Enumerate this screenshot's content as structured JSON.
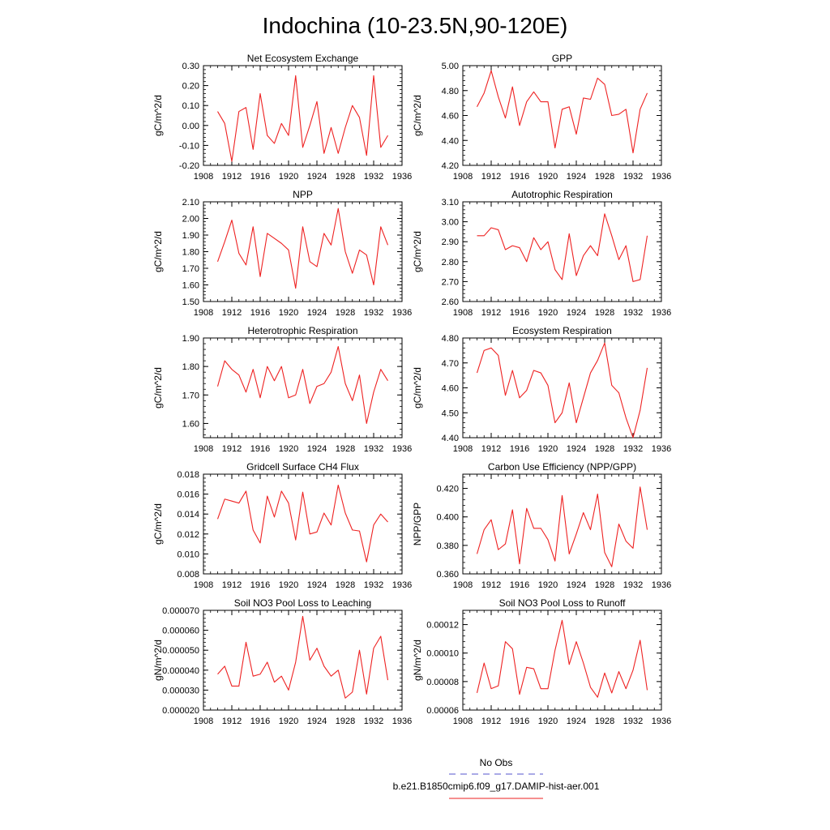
{
  "title": "Indochina (10-23.5N,90-120E)",
  "legend": {
    "items": [
      {
        "label": "No Obs",
        "color": "#5555cc",
        "dash": true
      },
      {
        "label": "b.e21.B1850cmip6.f09_g17.DAMIP-hist-aer.001",
        "color": "#ee2222",
        "dash": false
      }
    ]
  },
  "chart_data": [
    {
      "type": "line",
      "title": "Net Ecosystem Exchange",
      "ylabel": "gC/m^2/d",
      "xlim": [
        1908,
        1936
      ],
      "xticks": [
        1908,
        1912,
        1916,
        1920,
        1924,
        1928,
        1932,
        1936
      ],
      "ylim": [
        -0.2,
        0.3
      ],
      "yticks": [
        -0.2,
        -0.1,
        0.0,
        0.1,
        0.2,
        0.3
      ],
      "ytick_labels": [
        "-0.20",
        "-0.10",
        "0.00",
        "0.10",
        "0.20",
        "0.30"
      ],
      "x": [
        1910,
        1911,
        1912,
        1913,
        1914,
        1915,
        1916,
        1917,
        1918,
        1919,
        1920,
        1921,
        1922,
        1923,
        1924,
        1925,
        1926,
        1927,
        1928,
        1929,
        1930,
        1931,
        1932,
        1933,
        1934
      ],
      "series": [
        {
          "color": "#ee2222",
          "values": [
            0.07,
            0.01,
            -0.18,
            0.07,
            0.09,
            -0.12,
            0.16,
            -0.05,
            -0.09,
            0.01,
            -0.05,
            0.25,
            -0.11,
            0.0,
            0.12,
            -0.14,
            -0.01,
            -0.14,
            -0.01,
            0.1,
            0.04,
            -0.15,
            0.25,
            -0.11,
            -0.05
          ]
        }
      ]
    },
    {
      "type": "line",
      "title": "GPP",
      "ylabel": "gC/m^2/d",
      "xlim": [
        1908,
        1936
      ],
      "xticks": [
        1908,
        1912,
        1916,
        1920,
        1924,
        1928,
        1932,
        1936
      ],
      "ylim": [
        4.2,
        5.0
      ],
      "yticks": [
        4.2,
        4.4,
        4.6,
        4.8,
        5.0
      ],
      "ytick_labels": [
        "4.20",
        "4.40",
        "4.60",
        "4.80",
        "5.00"
      ],
      "x": [
        1910,
        1911,
        1912,
        1913,
        1914,
        1915,
        1916,
        1917,
        1918,
        1919,
        1920,
        1921,
        1922,
        1923,
        1924,
        1925,
        1926,
        1927,
        1928,
        1929,
        1930,
        1931,
        1932,
        1933,
        1934
      ],
      "series": [
        {
          "color": "#ee2222",
          "values": [
            4.67,
            4.78,
            4.96,
            4.75,
            4.58,
            4.83,
            4.52,
            4.71,
            4.79,
            4.71,
            4.71,
            4.34,
            4.65,
            4.67,
            4.45,
            4.74,
            4.73,
            4.9,
            4.85,
            4.6,
            4.61,
            4.65,
            4.3,
            4.65,
            4.78
          ]
        }
      ]
    },
    {
      "type": "line",
      "title": "NPP",
      "ylabel": "gC/m^2/d",
      "xlim": [
        1908,
        1936
      ],
      "xticks": [
        1908,
        1912,
        1916,
        1920,
        1924,
        1928,
        1932,
        1936
      ],
      "ylim": [
        1.5,
        2.1
      ],
      "yticks": [
        1.5,
        1.6,
        1.7,
        1.8,
        1.9,
        2.0,
        2.1
      ],
      "ytick_labels": [
        "1.50",
        "1.60",
        "1.70",
        "1.80",
        "1.90",
        "2.00",
        "2.10"
      ],
      "x": [
        1910,
        1911,
        1912,
        1913,
        1914,
        1915,
        1916,
        1917,
        1918,
        1919,
        1920,
        1921,
        1922,
        1923,
        1924,
        1925,
        1926,
        1927,
        1928,
        1929,
        1930,
        1931,
        1932,
        1933,
        1934
      ],
      "series": [
        {
          "color": "#ee2222",
          "values": [
            1.74,
            1.86,
            1.99,
            1.79,
            1.72,
            1.95,
            1.65,
            1.91,
            1.88,
            1.85,
            1.81,
            1.58,
            1.95,
            1.74,
            1.71,
            1.91,
            1.84,
            2.06,
            1.8,
            1.67,
            1.81,
            1.78,
            1.6,
            1.95,
            1.84
          ]
        }
      ]
    },
    {
      "type": "line",
      "title": "Autotrophic Respiration",
      "ylabel": "gC/m^2/d",
      "xlim": [
        1908,
        1936
      ],
      "xticks": [
        1908,
        1912,
        1916,
        1920,
        1924,
        1928,
        1932,
        1936
      ],
      "ylim": [
        2.6,
        3.1
      ],
      "yticks": [
        2.6,
        2.7,
        2.8,
        2.9,
        3.0,
        3.1
      ],
      "ytick_labels": [
        "2.60",
        "2.70",
        "2.80",
        "2.90",
        "3.00",
        "3.10"
      ],
      "x": [
        1910,
        1911,
        1912,
        1913,
        1914,
        1915,
        1916,
        1917,
        1918,
        1919,
        1920,
        1921,
        1922,
        1923,
        1924,
        1925,
        1926,
        1927,
        1928,
        1929,
        1930,
        1931,
        1932,
        1933,
        1934
      ],
      "series": [
        {
          "color": "#ee2222",
          "values": [
            2.93,
            2.93,
            2.97,
            2.96,
            2.86,
            2.88,
            2.87,
            2.8,
            2.92,
            2.86,
            2.9,
            2.76,
            2.71,
            2.94,
            2.73,
            2.83,
            2.88,
            2.83,
            3.04,
            2.93,
            2.81,
            2.88,
            2.7,
            2.71,
            2.93
          ]
        }
      ]
    },
    {
      "type": "line",
      "title": "Heterotrophic Respiration",
      "ylabel": "gC/m^2/d",
      "xlim": [
        1908,
        1936
      ],
      "xticks": [
        1908,
        1912,
        1916,
        1920,
        1924,
        1928,
        1932,
        1936
      ],
      "ylim": [
        1.55,
        1.9
      ],
      "yticks": [
        1.6,
        1.7,
        1.8,
        1.9
      ],
      "ytick_labels": [
        "1.60",
        "1.70",
        "1.80",
        "1.90"
      ],
      "x": [
        1910,
        1911,
        1912,
        1913,
        1914,
        1915,
        1916,
        1917,
        1918,
        1919,
        1920,
        1921,
        1922,
        1923,
        1924,
        1925,
        1926,
        1927,
        1928,
        1929,
        1930,
        1931,
        1932,
        1933,
        1934
      ],
      "series": [
        {
          "color": "#ee2222",
          "values": [
            1.73,
            1.82,
            1.79,
            1.77,
            1.71,
            1.79,
            1.69,
            1.8,
            1.75,
            1.8,
            1.69,
            1.7,
            1.79,
            1.67,
            1.73,
            1.74,
            1.78,
            1.87,
            1.74,
            1.68,
            1.77,
            1.6,
            1.71,
            1.79,
            1.75
          ]
        }
      ]
    },
    {
      "type": "line",
      "title": "Ecosystem Respiration",
      "ylabel": "gC/m^2/d",
      "xlim": [
        1908,
        1936
      ],
      "xticks": [
        1908,
        1912,
        1916,
        1920,
        1924,
        1928,
        1932,
        1936
      ],
      "ylim": [
        4.4,
        4.8
      ],
      "yticks": [
        4.4,
        4.5,
        4.6,
        4.7,
        4.8
      ],
      "ytick_labels": [
        "4.40",
        "4.50",
        "4.60",
        "4.70",
        "4.80"
      ],
      "x": [
        1910,
        1911,
        1912,
        1913,
        1914,
        1915,
        1916,
        1917,
        1918,
        1919,
        1920,
        1921,
        1922,
        1923,
        1924,
        1925,
        1926,
        1927,
        1928,
        1929,
        1930,
        1931,
        1932,
        1933,
        1934
      ],
      "series": [
        {
          "color": "#ee2222",
          "values": [
            4.66,
            4.75,
            4.76,
            4.73,
            4.57,
            4.67,
            4.56,
            4.59,
            4.67,
            4.66,
            4.61,
            4.46,
            4.5,
            4.62,
            4.46,
            4.56,
            4.66,
            4.71,
            4.78,
            4.61,
            4.58,
            4.48,
            4.4,
            4.51,
            4.68
          ]
        }
      ]
    },
    {
      "type": "line",
      "title": "Gridcell Surface CH4 Flux",
      "ylabel": "gC/m^2/d",
      "xlim": [
        1908,
        1936
      ],
      "xticks": [
        1908,
        1912,
        1916,
        1920,
        1924,
        1928,
        1932,
        1936
      ],
      "ylim": [
        0.008,
        0.018
      ],
      "yticks": [
        0.008,
        0.01,
        0.012,
        0.014,
        0.016,
        0.018
      ],
      "ytick_labels": [
        "0.008",
        "0.010",
        "0.012",
        "0.014",
        "0.016",
        "0.018"
      ],
      "x": [
        1910,
        1911,
        1912,
        1913,
        1914,
        1915,
        1916,
        1917,
        1918,
        1919,
        1920,
        1921,
        1922,
        1923,
        1924,
        1925,
        1926,
        1927,
        1928,
        1929,
        1930,
        1931,
        1932,
        1933,
        1934
      ],
      "series": [
        {
          "color": "#ee2222",
          "values": [
            0.0135,
            0.0155,
            0.0153,
            0.0151,
            0.0163,
            0.0124,
            0.0111,
            0.0158,
            0.0137,
            0.0163,
            0.0151,
            0.0114,
            0.0162,
            0.012,
            0.0122,
            0.0141,
            0.0129,
            0.0169,
            0.0141,
            0.0124,
            0.0123,
            0.0092,
            0.0129,
            0.014,
            0.0132
          ]
        }
      ]
    },
    {
      "type": "line",
      "title": "Carbon Use Efficiency (NPP/GPP)",
      "ylabel": "NPP/GPP",
      "xlim": [
        1908,
        1936
      ],
      "xticks": [
        1908,
        1912,
        1916,
        1920,
        1924,
        1928,
        1932,
        1936
      ],
      "ylim": [
        0.36,
        0.43
      ],
      "yticks": [
        0.36,
        0.38,
        0.4,
        0.42
      ],
      "ytick_labels": [
        "0.360",
        "0.380",
        "0.400",
        "0.420"
      ],
      "x": [
        1910,
        1911,
        1912,
        1913,
        1914,
        1915,
        1916,
        1917,
        1918,
        1919,
        1920,
        1921,
        1922,
        1923,
        1924,
        1925,
        1926,
        1927,
        1928,
        1929,
        1930,
        1931,
        1932,
        1933,
        1934
      ],
      "series": [
        {
          "color": "#ee2222",
          "values": [
            0.374,
            0.391,
            0.398,
            0.377,
            0.381,
            0.405,
            0.367,
            0.406,
            0.392,
            0.392,
            0.384,
            0.369,
            0.415,
            0.374,
            0.388,
            0.403,
            0.391,
            0.416,
            0.375,
            0.365,
            0.395,
            0.383,
            0.378,
            0.421,
            0.391
          ]
        }
      ]
    },
    {
      "type": "line",
      "title": "Soil NO3 Pool Loss to Leaching",
      "ylabel": "gN/m^2/d",
      "xlim": [
        1908,
        1936
      ],
      "xticks": [
        1908,
        1912,
        1916,
        1920,
        1924,
        1928,
        1932,
        1936
      ],
      "ylim": [
        2e-05,
        7e-05
      ],
      "yticks": [
        2e-05,
        3e-05,
        4e-05,
        5e-05,
        6e-05,
        7e-05
      ],
      "ytick_labels": [
        "0.000020",
        "0.000030",
        "0.000040",
        "0.000050",
        "0.000060",
        "0.000070"
      ],
      "x": [
        1910,
        1911,
        1912,
        1913,
        1914,
        1915,
        1916,
        1917,
        1918,
        1919,
        1920,
        1921,
        1922,
        1923,
        1924,
        1925,
        1926,
        1927,
        1928,
        1929,
        1930,
        1931,
        1932,
        1933,
        1934
      ],
      "series": [
        {
          "color": "#ee2222",
          "values": [
            3.8e-05,
            4.2e-05,
            3.2e-05,
            3.2e-05,
            5.4e-05,
            3.7e-05,
            3.8e-05,
            4.4e-05,
            3.4e-05,
            3.7e-05,
            3e-05,
            4.4e-05,
            6.7e-05,
            4.5e-05,
            5.1e-05,
            4.2e-05,
            3.7e-05,
            4e-05,
            2.6e-05,
            2.9e-05,
            5e-05,
            2.8e-05,
            5.1e-05,
            5.7e-05,
            3.5e-05
          ]
        }
      ]
    },
    {
      "type": "line",
      "title": "Soil NO3 Pool Loss to Runoff",
      "ylabel": "gN/m^2/d",
      "xlim": [
        1908,
        1936
      ],
      "xticks": [
        1908,
        1912,
        1916,
        1920,
        1924,
        1928,
        1932,
        1936
      ],
      "ylim": [
        6e-05,
        0.00013
      ],
      "yticks": [
        6e-05,
        8e-05,
        0.0001,
        0.00012
      ],
      "ytick_labels": [
        "0.00006",
        "0.00008",
        "0.00010",
        "0.00012"
      ],
      "x": [
        1910,
        1911,
        1912,
        1913,
        1914,
        1915,
        1916,
        1917,
        1918,
        1919,
        1920,
        1921,
        1922,
        1923,
        1924,
        1925,
        1926,
        1927,
        1928,
        1929,
        1930,
        1931,
        1932,
        1933,
        1934
      ],
      "series": [
        {
          "color": "#ee2222",
          "values": [
            7.2e-05,
            9.3e-05,
            7.5e-05,
            7.7e-05,
            0.000108,
            0.000103,
            7.1e-05,
            9e-05,
            8.9e-05,
            7.5e-05,
            7.5e-05,
            0.000102,
            0.000123,
            9.2e-05,
            0.000108,
            9.3e-05,
            7.6e-05,
            6.9e-05,
            8.6e-05,
            7.2e-05,
            8.7e-05,
            7.5e-05,
            8.8e-05,
            0.000109,
            7.4e-05
          ]
        }
      ]
    }
  ]
}
